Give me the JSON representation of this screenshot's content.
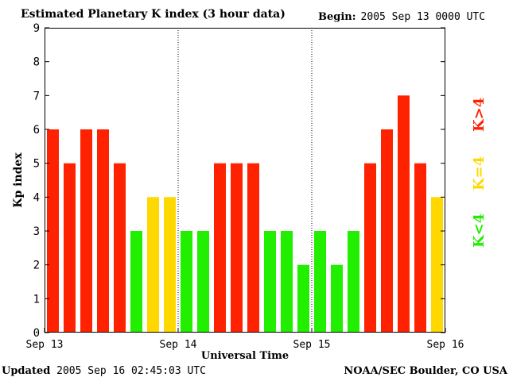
{
  "header": {
    "title": "Estimated Planetary K index (3 hour data)",
    "begin_label": "Begin:",
    "begin_value": "2005 Sep 13 0000 UTC"
  },
  "footer": {
    "updated_label": "Updated",
    "updated_value": "2005 Sep 16 02:45:03 UTC",
    "source": "NOAA/SEC Boulder, CO USA"
  },
  "legend": [
    {
      "label": "K>4",
      "color": "#ff2200"
    },
    {
      "label": "K=4",
      "color": "#ffd800"
    },
    {
      "label": "K<4",
      "color": "#22ee00"
    }
  ],
  "chart_data": {
    "type": "bar",
    "title": "Estimated Planetary K index (3 hour data)",
    "xlabel": "Universal Time",
    "ylabel": "Kp index",
    "ylim": [
      0,
      9
    ],
    "yticks": [
      "0",
      "1",
      "2",
      "3",
      "4",
      "5",
      "6",
      "7",
      "8",
      "9"
    ],
    "xticks": [
      "Sep 13",
      "Sep 14",
      "Sep 15",
      "Sep 16"
    ],
    "bars_per_day": 8,
    "values": [
      6,
      5,
      6,
      6,
      5,
      3,
      4,
      4,
      3,
      3,
      5,
      5,
      5,
      3,
      3,
      2,
      3,
      2,
      3,
      5,
      6,
      7,
      5,
      4
    ],
    "colors": {
      "high": "#ff2200",
      "equal": "#ffd800",
      "low": "#22ee00"
    }
  }
}
